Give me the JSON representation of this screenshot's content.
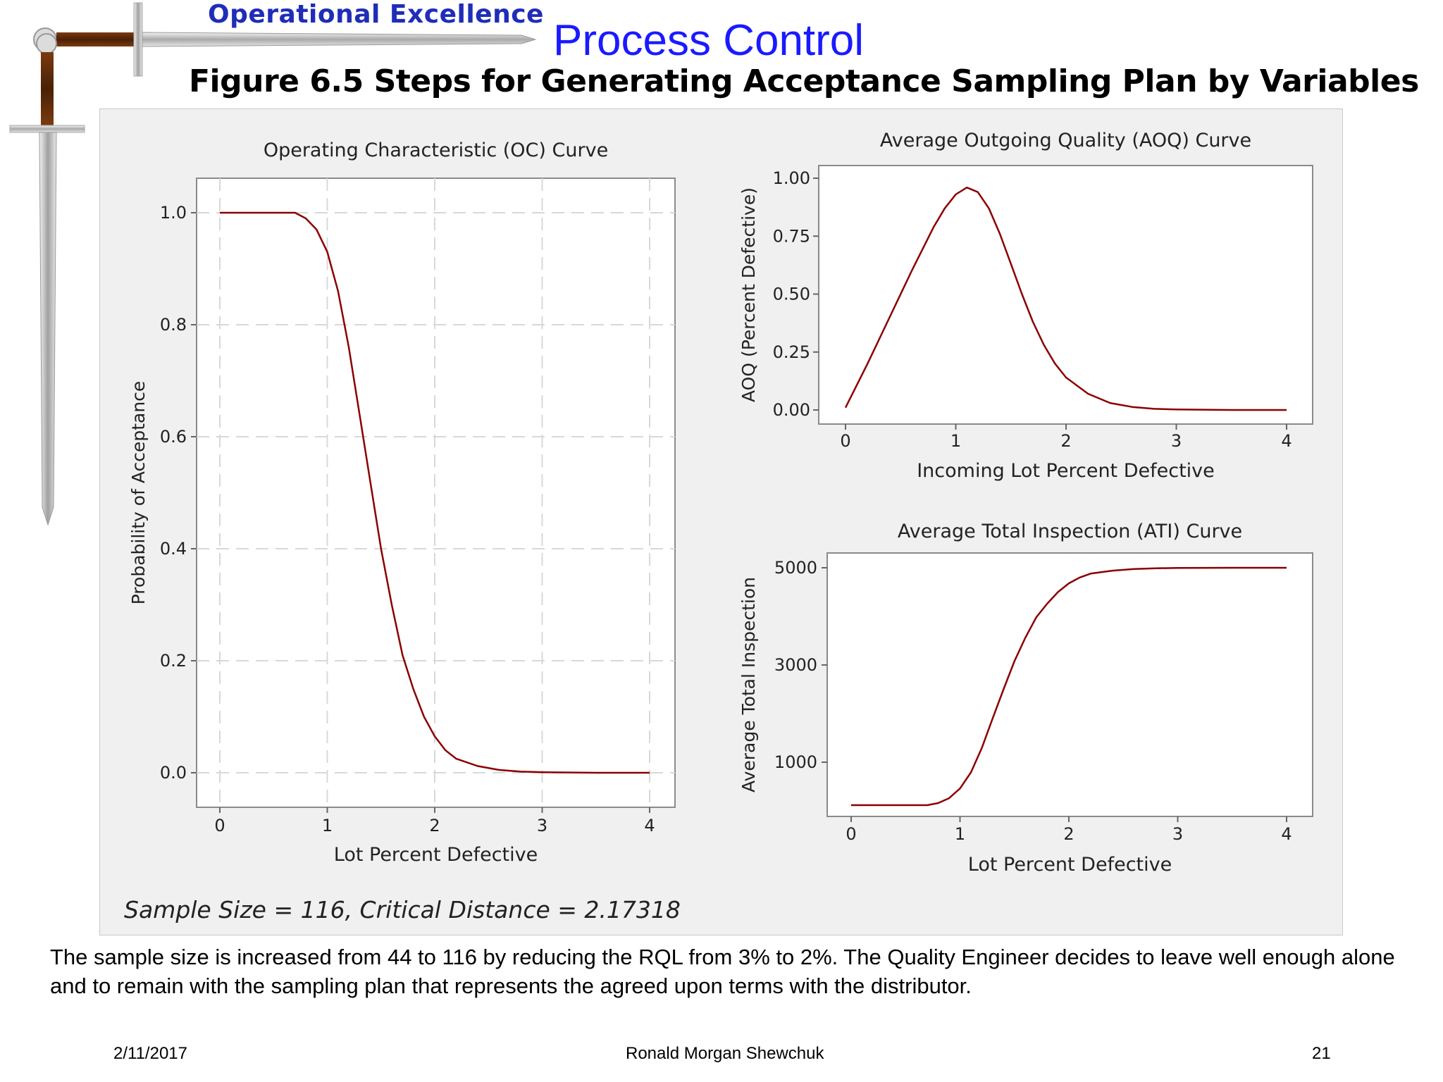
{
  "header": {
    "brand": "Operational Excellence",
    "title": "Process Control",
    "figure_title": "Figure 6.5  Steps for Generating Acceptance Sampling Plan by Variables"
  },
  "colors": {
    "curve": "#8b0000",
    "brand": "#1f2db8",
    "title": "#1a1aff",
    "panel": "#f0f0f0"
  },
  "icons": {
    "logo": "sword-icon"
  },
  "chart_data": [
    {
      "type": "line",
      "title": "Operating Characteristic (OC) Curve",
      "xlabel": "Lot Percent Defective",
      "ylabel": "Probability of Acceptance",
      "xlim": [
        0,
        4
      ],
      "ylim": [
        0,
        1.0
      ],
      "xticks": [
        "0",
        "1",
        "2",
        "3",
        "4"
      ],
      "yticks": [
        "0.0",
        "0.2",
        "0.4",
        "0.6",
        "0.8",
        "1.0"
      ],
      "grid": true,
      "x": [
        0,
        0.5,
        0.7,
        0.8,
        0.9,
        1.0,
        1.1,
        1.2,
        1.3,
        1.4,
        1.5,
        1.6,
        1.7,
        1.8,
        1.9,
        2.0,
        2.1,
        2.2,
        2.4,
        2.6,
        2.8,
        3.0,
        3.5,
        4.0
      ],
      "y": [
        1.0,
        1.0,
        1.0,
        0.99,
        0.97,
        0.93,
        0.86,
        0.76,
        0.64,
        0.52,
        0.4,
        0.3,
        0.21,
        0.15,
        0.1,
        0.065,
        0.04,
        0.025,
        0.012,
        0.005,
        0.002,
        0.001,
        0.0,
        0.0
      ]
    },
    {
      "type": "line",
      "title": "Average Outgoing Quality (AOQ) Curve",
      "xlabel": "Incoming Lot Percent Defective",
      "ylabel": "AOQ (Percent Defective)",
      "xlim": [
        0,
        4
      ],
      "ylim": [
        0,
        1.0
      ],
      "xticks": [
        "0",
        "1",
        "2",
        "3",
        "4"
      ],
      "yticks": [
        "0.00",
        "0.25",
        "0.50",
        "0.75",
        "1.00"
      ],
      "grid": false,
      "x": [
        0,
        0.2,
        0.4,
        0.6,
        0.8,
        0.9,
        1.0,
        1.1,
        1.2,
        1.3,
        1.4,
        1.5,
        1.6,
        1.7,
        1.8,
        1.9,
        2.0,
        2.2,
        2.4,
        2.6,
        2.8,
        3.0,
        3.5,
        4.0
      ],
      "y": [
        0.01,
        0.2,
        0.4,
        0.6,
        0.79,
        0.87,
        0.93,
        0.96,
        0.94,
        0.87,
        0.76,
        0.63,
        0.5,
        0.38,
        0.28,
        0.2,
        0.14,
        0.07,
        0.03,
        0.013,
        0.005,
        0.002,
        0.0,
        0.0
      ]
    },
    {
      "type": "line",
      "title": "Average Total Inspection (ATI) Curve",
      "xlabel": "Lot Percent Defective",
      "ylabel": "Average Total Inspection",
      "xlim": [
        0,
        4
      ],
      "ylim": [
        -500,
        5500
      ],
      "xticks": [
        "0",
        "1",
        "2",
        "3",
        "4"
      ],
      "yticks": [
        "1000",
        "3000",
        "5000"
      ],
      "grid": false,
      "x": [
        0,
        0.5,
        0.7,
        0.8,
        0.9,
        1.0,
        1.1,
        1.2,
        1.3,
        1.4,
        1.5,
        1.6,
        1.7,
        1.8,
        1.9,
        2.0,
        2.1,
        2.2,
        2.4,
        2.6,
        2.8,
        3.0,
        3.5,
        4.0
      ],
      "y": [
        116,
        116,
        116,
        160,
        260,
        460,
        790,
        1290,
        1900,
        2500,
        3080,
        3560,
        3980,
        4260,
        4500,
        4680,
        4800,
        4880,
        4940,
        4975,
        4990,
        4995,
        5000,
        5000
      ]
    }
  ],
  "summary": "Sample Size =  116, Critical Distance =  2.17318",
  "description": "The sample size is increased from 44 to 116 by reducing the RQL from 3% to 2%.  The Quality Engineer decides to leave well enough alone and to remain with the sampling plan that represents the agreed upon terms with the distributor.",
  "footer": {
    "date": "2/11/2017",
    "author": "Ronald Morgan Shewchuk",
    "page": "21"
  }
}
